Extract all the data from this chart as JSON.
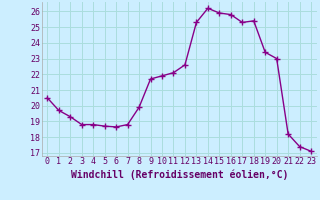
{
  "x": [
    0,
    1,
    2,
    3,
    4,
    5,
    6,
    7,
    8,
    9,
    10,
    11,
    12,
    13,
    14,
    15,
    16,
    17,
    18,
    19,
    20,
    21,
    22,
    23
  ],
  "y": [
    20.5,
    19.7,
    19.3,
    18.8,
    18.8,
    18.7,
    18.65,
    18.8,
    19.9,
    21.7,
    21.9,
    22.1,
    22.6,
    25.3,
    26.2,
    25.9,
    25.8,
    25.3,
    25.4,
    23.4,
    23.0,
    18.2,
    17.4,
    17.1
  ],
  "line_color": "#880088",
  "marker": "+",
  "marker_size": 4,
  "marker_linewidth": 1.0,
  "bg_color": "#cceeff",
  "grid_color": "#aadddd",
  "xlabel": "Windchill (Refroidissement éolien,°C)",
  "xlabel_fontsize": 7,
  "yticks": [
    17,
    18,
    19,
    20,
    21,
    22,
    23,
    24,
    25,
    26
  ],
  "xticks": [
    0,
    1,
    2,
    3,
    4,
    5,
    6,
    7,
    8,
    9,
    10,
    11,
    12,
    13,
    14,
    15,
    16,
    17,
    18,
    19,
    20,
    21,
    22,
    23
  ],
  "xlim": [
    -0.5,
    23.5
  ],
  "ylim": [
    16.8,
    26.6
  ],
  "tick_fontsize": 6,
  "linewidth": 1.0,
  "text_color": "#660066"
}
